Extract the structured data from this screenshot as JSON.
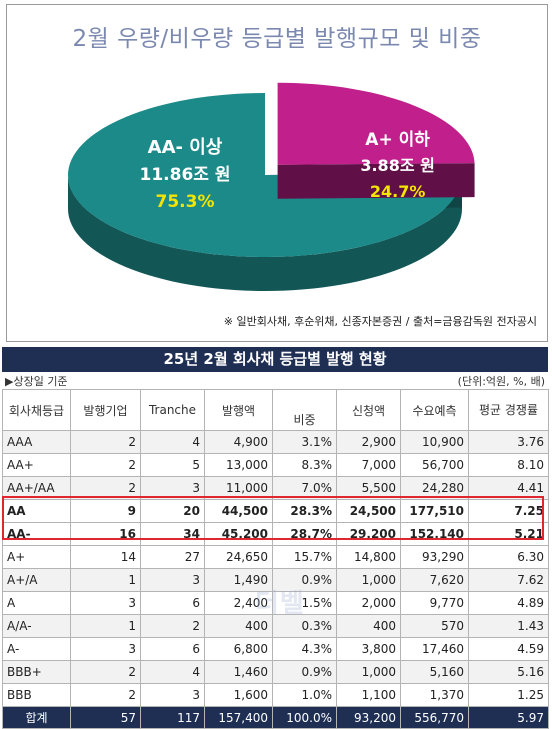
{
  "chart_data": {
    "type": "pie",
    "title": "2월 우량/비우량 등급별 발행규모 및 비중",
    "slices": [
      {
        "name": "AA- 이상",
        "value": 11.86,
        "value_label": "11.86조 원",
        "share_label": "75.3%",
        "percent": 75.3,
        "color": "#1d8a8a"
      },
      {
        "name": "A+ 이하",
        "value": 3.88,
        "value_label": "3.88조 원",
        "share_label": "24.7%",
        "percent": 24.7,
        "color": "#c01f8c"
      }
    ],
    "note": "※ 일반회사채, 후순위채, 신종자본증권 / 출처=금융감독원 전자공시"
  },
  "table": {
    "title": "25년 2월 회사채 등급별 발행 현황",
    "note_left": "▶상장일 기준",
    "note_right": "(단위:억원, %, 배)",
    "headers": [
      "회사채등급",
      "발행기업",
      "Tranche",
      "발행액",
      "비중",
      "신청액",
      "수요예측",
      "평균 경쟁률"
    ],
    "rows": [
      [
        "AAA",
        "2",
        "4",
        "4,900",
        "3.1%",
        "2,900",
        "10,900",
        "3.76"
      ],
      [
        "AA+",
        "2",
        "5",
        "13,000",
        "8.3%",
        "7,000",
        "56,700",
        "8.10"
      ],
      [
        "AA+/AA",
        "2",
        "3",
        "11,000",
        "7.0%",
        "5,500",
        "24,280",
        "4.41"
      ],
      [
        "AA",
        "9",
        "20",
        "44,500",
        "28.3%",
        "24,500",
        "177,510",
        "7.25"
      ],
      [
        "AA-",
        "16",
        "34",
        "45,200",
        "28.7%",
        "29,200",
        "152,140",
        "5.21"
      ],
      [
        "A+",
        "14",
        "27",
        "24,650",
        "15.7%",
        "14,800",
        "93,290",
        "6.30"
      ],
      [
        "A+/A",
        "1",
        "3",
        "1,490",
        "0.9%",
        "1,000",
        "7,620",
        "7.62"
      ],
      [
        "A",
        "3",
        "6",
        "2,400",
        "1.5%",
        "2,000",
        "9,770",
        "4.89"
      ],
      [
        "A/A-",
        "1",
        "2",
        "400",
        "0.3%",
        "400",
        "570",
        "1.43"
      ],
      [
        "A-",
        "3",
        "6",
        "6,800",
        "4.3%",
        "3,800",
        "17,460",
        "4.59"
      ],
      [
        "BBB+",
        "2",
        "4",
        "1,460",
        "0.9%",
        "1,000",
        "5,160",
        "5.16"
      ],
      [
        "BBB",
        "2",
        "3",
        "1,600",
        "1.0%",
        "1,100",
        "1,370",
        "1.25"
      ]
    ],
    "total": [
      "합계",
      "57",
      "117",
      "157,400",
      "100.0%",
      "93,200",
      "556,770",
      "5.97"
    ],
    "highlight_rows": [
      3,
      4
    ]
  }
}
